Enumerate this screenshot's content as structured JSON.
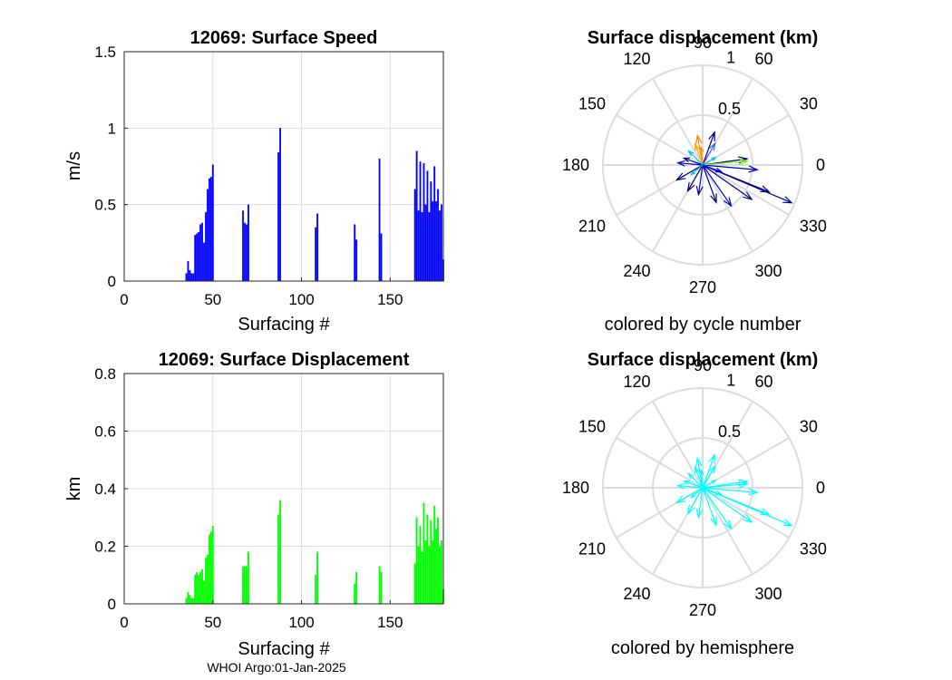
{
  "footer": "WHOI Argo:01-Jan-2025",
  "chart_data": [
    {
      "id": "speed",
      "type": "bar",
      "title": "12069: Surface Speed",
      "xlabel": "Surfacing #",
      "ylabel": "m/s",
      "xlim": [
        0,
        180
      ],
      "ylim": [
        0,
        1.5
      ],
      "xticks": [
        0,
        50,
        100,
        150
      ],
      "yticks": [
        0,
        0.5,
        1,
        1.5
      ],
      "xtick_labels": [
        "0",
        "50",
        "100",
        "150"
      ],
      "ytick_labels": [
        "0",
        "0.5",
        "1",
        "1.5"
      ],
      "grid": true,
      "color": "#0000ff",
      "x": [
        35,
        36,
        37,
        38,
        39,
        40,
        41,
        42,
        43,
        44,
        45,
        46,
        47,
        48,
        49,
        50,
        67,
        68,
        69,
        70,
        87,
        88,
        108,
        109,
        130,
        131,
        144,
        145,
        164,
        165,
        166,
        167,
        168,
        169,
        170,
        171,
        172,
        173,
        174,
        175,
        176,
        177,
        178,
        179,
        180
      ],
      "values": [
        0.05,
        0.13,
        0.07,
        0.05,
        0.05,
        0.3,
        0.31,
        0.32,
        0.37,
        0.38,
        0.25,
        0.45,
        0.6,
        0.67,
        0.68,
        0.76,
        0.46,
        0.38,
        0.37,
        0.5,
        0.84,
        1.0,
        0.35,
        0.44,
        0.37,
        0.27,
        0.8,
        0.31,
        0.6,
        0.85,
        0.46,
        0.78,
        0.45,
        0.77,
        0.5,
        0.72,
        0.45,
        0.65,
        0.52,
        0.75,
        0.52,
        0.6,
        0.46,
        0.5,
        0.14
      ]
    },
    {
      "id": "displacement",
      "type": "bar",
      "title": "12069: Surface Displacement",
      "xlabel": "Surfacing #",
      "ylabel": "km",
      "xlim": [
        0,
        180
      ],
      "ylim": [
        0,
        0.8
      ],
      "xticks": [
        0,
        50,
        100,
        150
      ],
      "yticks": [
        0,
        0.2,
        0.4,
        0.6,
        0.8
      ],
      "xtick_labels": [
        "0",
        "50",
        "100",
        "150"
      ],
      "ytick_labels": [
        "0",
        "0.2",
        "0.4",
        "0.6",
        "0.8"
      ],
      "grid": true,
      "color": "#00ff00",
      "x": [
        35,
        36,
        37,
        38,
        39,
        40,
        41,
        42,
        43,
        44,
        45,
        46,
        47,
        48,
        49,
        50,
        67,
        68,
        69,
        70,
        87,
        88,
        108,
        109,
        130,
        131,
        144,
        145,
        164,
        165,
        166,
        167,
        168,
        169,
        170,
        171,
        172,
        173,
        174,
        175,
        176,
        177,
        178,
        179,
        180
      ],
      "values": [
        0.02,
        0.04,
        0.03,
        0.02,
        0.02,
        0.1,
        0.11,
        0.1,
        0.11,
        0.12,
        0.08,
        0.16,
        0.17,
        0.24,
        0.25,
        0.27,
        0.13,
        0.13,
        0.13,
        0.18,
        0.31,
        0.36,
        0.1,
        0.18,
        0.07,
        0.11,
        0.13,
        0.11,
        0.14,
        0.3,
        0.2,
        0.27,
        0.18,
        0.35,
        0.22,
        0.31,
        0.2,
        0.29,
        0.22,
        0.34,
        0.26,
        0.3,
        0.2,
        0.22,
        0.05
      ]
    },
    {
      "id": "polar-cycle",
      "type": "polar-compass",
      "title": "Surface displacement (km)",
      "subtitle": "colored by cycle number",
      "rmax": 1,
      "rtick_labels": [
        "0.5",
        "1"
      ],
      "theta_labels": [
        "0",
        "30",
        "60",
        "90",
        "120",
        "150",
        "180",
        "210",
        "240",
        "270",
        "300",
        "330"
      ],
      "arrows": [
        {
          "mag": 0.97,
          "deg": -23,
          "color": "#00008b"
        },
        {
          "mag": 0.72,
          "deg": -22,
          "color": "#00008b"
        },
        {
          "mag": 0.55,
          "deg": -5,
          "color": "#0000cd"
        },
        {
          "mag": 0.6,
          "deg": -35,
          "color": "#00008b"
        },
        {
          "mag": 0.45,
          "deg": 8,
          "color": "#00008b"
        },
        {
          "mag": 0.5,
          "deg": -55,
          "color": "#0000cd"
        },
        {
          "mag": 0.4,
          "deg": -70,
          "color": "#00008b"
        },
        {
          "mag": 0.3,
          "deg": -98,
          "color": "#0000cd"
        },
        {
          "mag": 0.3,
          "deg": -120,
          "color": "#00008b"
        },
        {
          "mag": 0.3,
          "deg": -150,
          "color": "#00008b"
        },
        {
          "mag": 0.25,
          "deg": 175,
          "color": "#0000cd"
        },
        {
          "mag": 0.2,
          "deg": 160,
          "color": "#00008b"
        },
        {
          "mag": 0.35,
          "deg": 70,
          "color": "#00008b"
        },
        {
          "mag": 0.3,
          "deg": 100,
          "color": "#ff8c00"
        },
        {
          "mag": 0.22,
          "deg": 110,
          "color": "#ffa500"
        },
        {
          "mag": 0.18,
          "deg": 95,
          "color": "#ff8c00"
        },
        {
          "mag": 0.45,
          "deg": 5,
          "color": "#7cfc00"
        },
        {
          "mag": 0.15,
          "deg": 30,
          "color": "#00bfff"
        },
        {
          "mag": 0.2,
          "deg": 135,
          "color": "#00bfff"
        },
        {
          "mag": 0.15,
          "deg": -140,
          "color": "#00ced1"
        },
        {
          "mag": 0.25,
          "deg": 60,
          "color": "#4169e1"
        },
        {
          "mag": 0.2,
          "deg": -20,
          "color": "#0000ff"
        }
      ]
    },
    {
      "id": "polar-hemisphere",
      "type": "polar-compass",
      "title": "Surface displacement (km)",
      "subtitle": "colored by hemisphere",
      "rmax": 1,
      "rtick_labels": [
        "0.5",
        "1"
      ],
      "theta_labels": [
        "0",
        "30",
        "60",
        "90",
        "120",
        "150",
        "180",
        "210",
        "240",
        "270",
        "300",
        "330"
      ],
      "arrows": [
        {
          "mag": 0.97,
          "deg": -23,
          "color": "#00ffff"
        },
        {
          "mag": 0.72,
          "deg": -22,
          "color": "#00ffff"
        },
        {
          "mag": 0.55,
          "deg": -5,
          "color": "#00ffff"
        },
        {
          "mag": 0.6,
          "deg": -35,
          "color": "#00ffff"
        },
        {
          "mag": 0.45,
          "deg": 8,
          "color": "#00ffff"
        },
        {
          "mag": 0.5,
          "deg": -55,
          "color": "#00ffff"
        },
        {
          "mag": 0.4,
          "deg": -70,
          "color": "#00ffff"
        },
        {
          "mag": 0.3,
          "deg": -98,
          "color": "#00ffff"
        },
        {
          "mag": 0.3,
          "deg": -120,
          "color": "#00ffff"
        },
        {
          "mag": 0.3,
          "deg": -150,
          "color": "#00ffff"
        },
        {
          "mag": 0.25,
          "deg": 175,
          "color": "#00ffff"
        },
        {
          "mag": 0.2,
          "deg": 160,
          "color": "#00ffff"
        },
        {
          "mag": 0.35,
          "deg": 70,
          "color": "#00ffff"
        },
        {
          "mag": 0.3,
          "deg": 100,
          "color": "#00ffff"
        },
        {
          "mag": 0.22,
          "deg": 110,
          "color": "#00ffff"
        },
        {
          "mag": 0.18,
          "deg": 95,
          "color": "#00ffff"
        },
        {
          "mag": 0.45,
          "deg": 5,
          "color": "#00ffff"
        },
        {
          "mag": 0.15,
          "deg": 30,
          "color": "#00ffff"
        },
        {
          "mag": 0.2,
          "deg": 135,
          "color": "#00ffff"
        },
        {
          "mag": 0.15,
          "deg": -140,
          "color": "#00ffff"
        },
        {
          "mag": 0.25,
          "deg": 60,
          "color": "#00ffff"
        },
        {
          "mag": 0.2,
          "deg": -20,
          "color": "#00ffff"
        }
      ]
    }
  ]
}
